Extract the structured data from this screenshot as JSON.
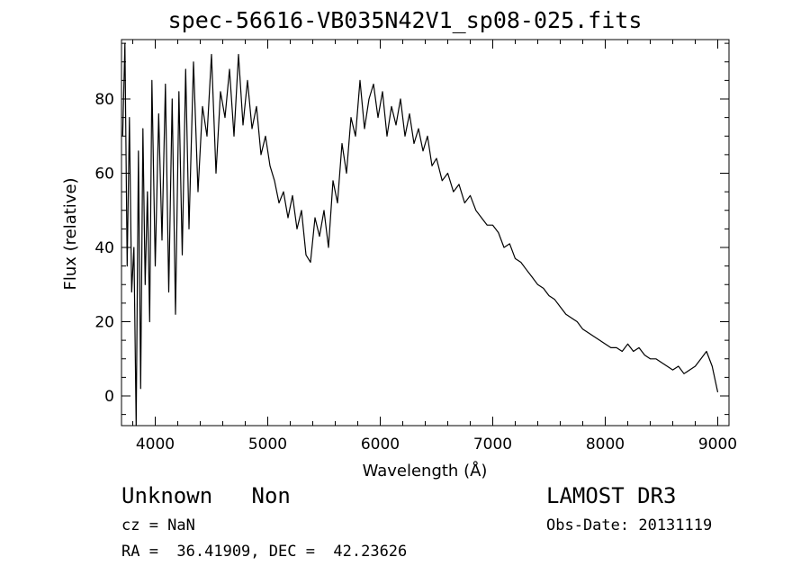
{
  "chart_data": {
    "type": "line",
    "title": "spec-56616-VB035N42V1_sp08-025.fits",
    "xlabel": "Wavelength (Å)",
    "ylabel": "Flux (relative)",
    "xlim": [
      3700,
      9100
    ],
    "ylim": [
      -8,
      96
    ],
    "x_ticks": [
      4000,
      5000,
      6000,
      7000,
      8000,
      9000
    ],
    "y_ticks": [
      0,
      20,
      40,
      60,
      80
    ],
    "grid": false,
    "series": [
      {
        "x": [
          3710,
          3730,
          3750,
          3770,
          3790,
          3810,
          3830,
          3850,
          3870,
          3890,
          3910,
          3930,
          3950,
          3970,
          4000,
          4030,
          4060,
          4090,
          4120,
          4150,
          4180,
          4210,
          4240,
          4270,
          4300,
          4340,
          4380,
          4420,
          4460,
          4500,
          4540,
          4580,
          4620,
          4660,
          4700,
          4740,
          4780,
          4820,
          4860,
          4900,
          4940,
          4980,
          5020,
          5060,
          5100,
          5140,
          5180,
          5220,
          5260,
          5300,
          5340,
          5380,
          5420,
          5460,
          5500,
          5540,
          5580,
          5620,
          5660,
          5700,
          5740,
          5780,
          5820,
          5860,
          5900,
          5940,
          5980,
          6020,
          6060,
          6100,
          6140,
          6180,
          6220,
          6260,
          6300,
          6340,
          6380,
          6420,
          6460,
          6500,
          6550,
          6600,
          6650,
          6700,
          6750,
          6800,
          6850,
          6900,
          6950,
          7000,
          7050,
          7100,
          7150,
          7200,
          7250,
          7300,
          7350,
          7400,
          7450,
          7500,
          7550,
          7600,
          7650,
          7700,
          7750,
          7800,
          7850,
          7900,
          7950,
          8000,
          8050,
          8100,
          8150,
          8200,
          8250,
          8300,
          8350,
          8400,
          8450,
          8500,
          8550,
          8600,
          8650,
          8700,
          8750,
          8800,
          8850,
          8900,
          8950,
          9000
        ],
        "values": [
          70,
          95,
          35,
          75,
          28,
          40,
          -8,
          66,
          2,
          72,
          30,
          55,
          20,
          85,
          35,
          76,
          42,
          84,
          28,
          80,
          22,
          82,
          38,
          88,
          45,
          90,
          55,
          78,
          70,
          92,
          60,
          82,
          75,
          88,
          70,
          92,
          73,
          85,
          72,
          78,
          65,
          70,
          62,
          58,
          52,
          55,
          48,
          54,
          45,
          50,
          38,
          36,
          48,
          43,
          50,
          40,
          58,
          52,
          68,
          60,
          75,
          70,
          85,
          72,
          80,
          84,
          75,
          82,
          70,
          78,
          73,
          80,
          70,
          76,
          68,
          72,
          66,
          70,
          62,
          64,
          58,
          60,
          55,
          57,
          52,
          54,
          50,
          48,
          46,
          46,
          44,
          40,
          41,
          37,
          36,
          34,
          32,
          30,
          29,
          27,
          26,
          24,
          22,
          21,
          20,
          18,
          17,
          16,
          15,
          14,
          13,
          13,
          12,
          14,
          12,
          13,
          11,
          10,
          10,
          9,
          8,
          7,
          8,
          6,
          7,
          8,
          10,
          12,
          8,
          1
        ]
      }
    ]
  },
  "annotations": {
    "object_class": "Unknown   Non",
    "survey": "LAMOST DR3",
    "redshift": "cz = NaN",
    "obs_date": "Obs-Date: 20131119",
    "coords": "RA =  36.41909, DEC =  42.23626"
  }
}
